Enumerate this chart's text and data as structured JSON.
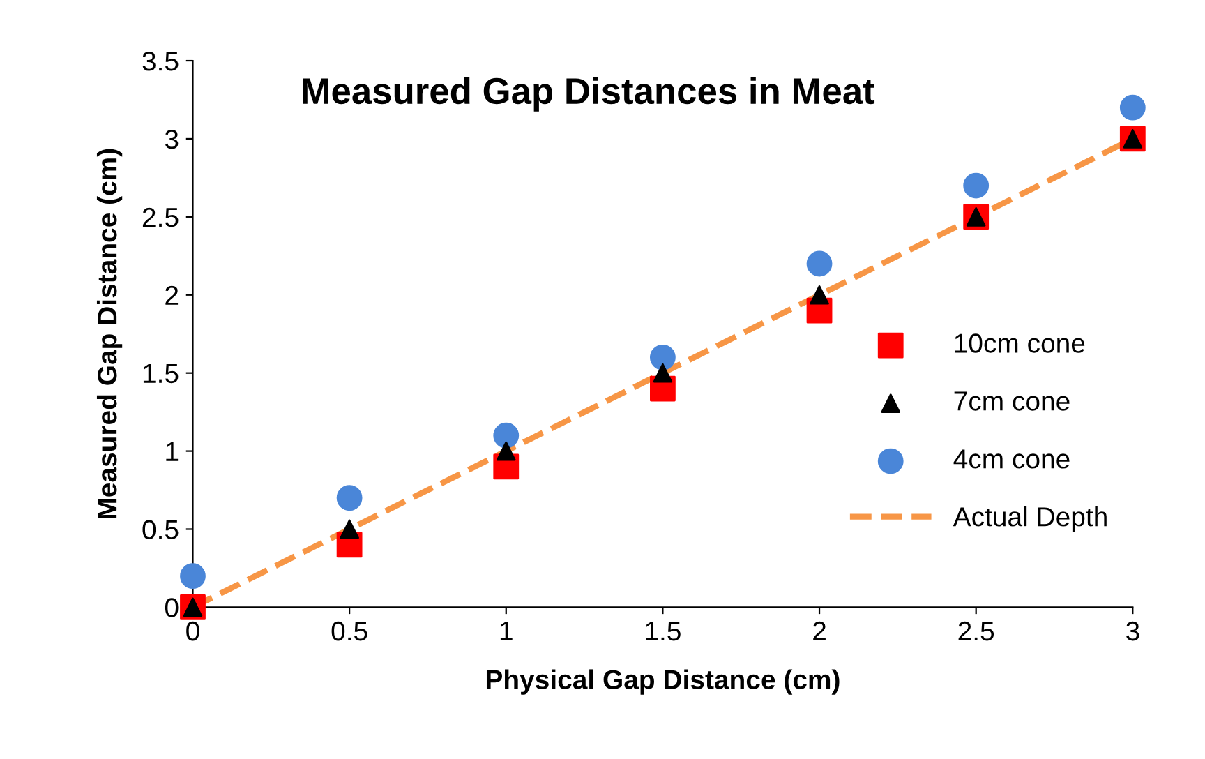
{
  "chart_data": {
    "type": "scatter",
    "title": "Measured Gap Distances in Meat",
    "xlabel": "Physical Gap Distance (cm)",
    "ylabel": "Measured Gap Distance (cm)",
    "x": [
      0,
      0.5,
      1,
      1.5,
      2,
      2.5,
      3
    ],
    "series": [
      {
        "name": "10cm cone",
        "color": "#ff0000",
        "marker": "square",
        "values": [
          0,
          0.4,
          0.9,
          1.4,
          1.9,
          2.5,
          3.0
        ]
      },
      {
        "name": "7cm cone",
        "color": "#000000",
        "marker": "triangle",
        "values": [
          0,
          0.5,
          1.0,
          1.5,
          2.0,
          2.5,
          3.0
        ]
      },
      {
        "name": "4cm cone",
        "color": "#4a86d8",
        "marker": "circle",
        "values": [
          0.2,
          0.7,
          1.1,
          1.6,
          2.2,
          2.7,
          3.2
        ]
      },
      {
        "name": "Actual Depth",
        "type": "line",
        "color": "#f79646",
        "marker": "none",
        "line_style": "dashed",
        "x": [
          0,
          3
        ],
        "values": [
          0,
          3
        ]
      }
    ],
    "xlim": [
      0,
      3
    ],
    "ylim": [
      0,
      3.5
    ],
    "xticks": [
      0,
      0.5,
      1,
      1.5,
      2,
      2.5,
      3
    ],
    "yticks": [
      0,
      0.5,
      1,
      1.5,
      2,
      2.5,
      3,
      3.5
    ],
    "grid": false,
    "legend": "right"
  }
}
